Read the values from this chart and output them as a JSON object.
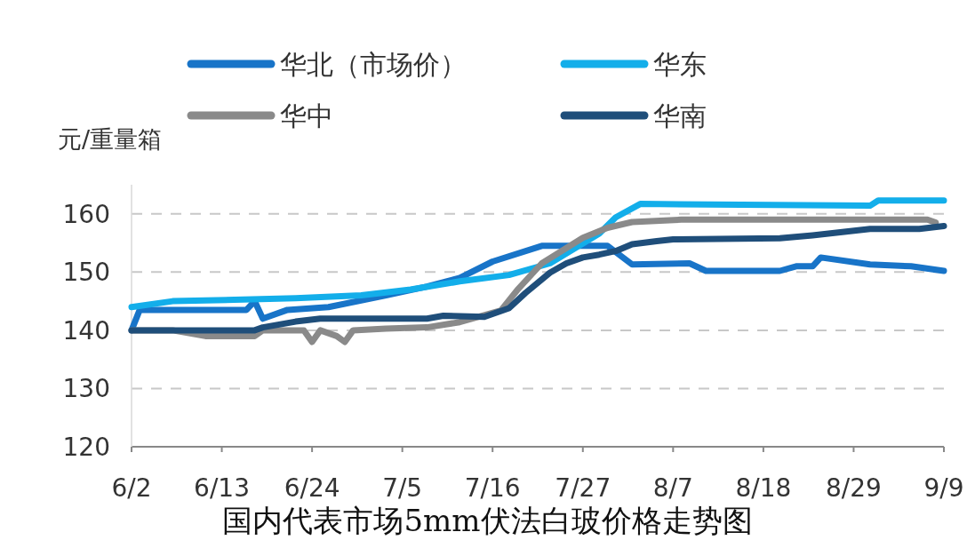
{
  "chart_data": {
    "type": "line",
    "title": "国内代表市场5mm伏法白玻价格走势图",
    "ylabel": "元/重量箱",
    "xlim": [
      "--06-02",
      "--09-09"
    ],
    "ylim": [
      120,
      165
    ],
    "xticks": [
      {
        "value": "--06-02",
        "label": "6/2"
      },
      {
        "value": "--06-13",
        "label": "6/13"
      },
      {
        "value": "--06-24",
        "label": "6/24"
      },
      {
        "value": "--07-05",
        "label": "7/5"
      },
      {
        "value": "--07-16",
        "label": "7/16"
      },
      {
        "value": "--07-27",
        "label": "7/27"
      },
      {
        "value": "--08-07",
        "label": "8/7"
      },
      {
        "value": "--08-18",
        "label": "8/18"
      },
      {
        "value": "--08-29",
        "label": "8/29"
      },
      {
        "value": "--09-09",
        "label": "9/9"
      }
    ],
    "yticks": [
      120,
      130,
      140,
      150,
      160
    ],
    "grid": "y",
    "legend": "top",
    "line_style": "solid",
    "marker": "none",
    "series": [
      {
        "name": "华北（市场价）",
        "color": "#1874c8",
        "x": [
          "--06-02",
          "--06-03",
          "--06-16",
          "--06-17",
          "--06-18",
          "--06-21",
          "--06-26",
          "--07-03",
          "--07-08",
          "--07-12",
          "--07-16",
          "--07-22",
          "--07-30",
          "--08-02",
          "--08-09",
          "--08-11",
          "--08-20",
          "--08-22",
          "--08-24",
          "--08-25",
          "--08-31",
          "--09-05",
          "--09-09"
        ],
        "values": [
          140,
          143.5,
          143.5,
          145,
          142,
          143.5,
          144,
          146,
          147.5,
          149,
          151.8,
          154.5,
          154.5,
          151.3,
          151.5,
          150.2,
          150.2,
          151,
          151,
          152.5,
          151.3,
          151,
          150.2
        ]
      },
      {
        "name": "华东",
        "color": "#13aeea",
        "x": [
          "--06-02",
          "--06-07",
          "--06-22",
          "--06-30",
          "--07-06",
          "--07-12",
          "--07-18",
          "--07-23",
          "--07-29",
          "--07-31",
          "--08-03",
          "--08-31",
          "--09-01",
          "--09-09"
        ],
        "values": [
          144,
          145,
          145.5,
          146,
          147,
          148.4,
          149.5,
          151.5,
          156.6,
          159.4,
          161.7,
          161.4,
          162.3,
          162.3
        ]
      },
      {
        "name": "华中",
        "color": "#8a8a8a",
        "x": [
          "--06-02",
          "--06-07",
          "--06-11",
          "--06-17",
          "--06-18",
          "--06-23",
          "--06-24",
          "--06-25",
          "--06-27",
          "--06-28",
          "--06-29",
          "--07-03",
          "--07-08",
          "--07-12",
          "--07-17",
          "--07-19",
          "--07-22",
          "--07-27",
          "--07-30",
          "--08-02",
          "--08-08",
          "--09-07",
          "--09-08"
        ],
        "values": [
          140,
          140,
          139,
          139,
          140,
          140,
          138,
          140,
          139,
          138,
          140,
          140.3,
          140.5,
          141.4,
          143.4,
          146.9,
          151.5,
          155.9,
          157.6,
          158.6,
          159,
          159,
          158.5
        ]
      },
      {
        "name": "华南",
        "color": "#1f4e7a",
        "x": [
          "--06-02",
          "--06-17",
          "--06-18",
          "--06-22",
          "--06-25",
          "--07-08",
          "--07-10",
          "--07-15",
          "--07-18",
          "--07-20",
          "--07-23",
          "--07-25",
          "--07-27",
          "--07-29",
          "--07-31",
          "--08-02",
          "--08-05",
          "--08-07",
          "--08-20",
          "--08-24",
          "--08-31",
          "--09-06",
          "--09-09"
        ],
        "values": [
          140,
          140,
          140.5,
          141.5,
          142,
          142,
          142.5,
          142.3,
          143.8,
          146.4,
          149.9,
          151.5,
          152.5,
          153,
          153.6,
          154.8,
          155.3,
          155.6,
          155.8,
          156.3,
          157.4,
          157.4,
          157.9
        ]
      }
    ]
  }
}
